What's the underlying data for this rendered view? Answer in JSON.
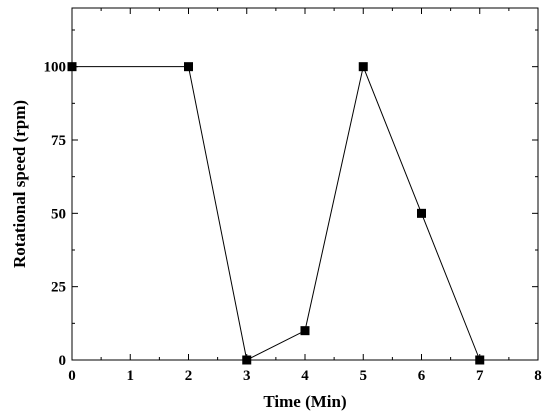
{
  "chart_data": {
    "type": "line",
    "title": "",
    "xlabel": "Time (Min)",
    "ylabel": "Rotational speed (rpm)",
    "xlim": [
      0,
      8
    ],
    "ylim": [
      0,
      120
    ],
    "x_ticks": [
      0,
      1,
      2,
      3,
      4,
      5,
      6,
      7,
      8
    ],
    "y_ticks": [
      0,
      25,
      50,
      75,
      100
    ],
    "grid": false,
    "legend": "none",
    "marker": "square",
    "line_color": "#000000",
    "series": [
      {
        "x": [
          0,
          2,
          3,
          4,
          5,
          6,
          7
        ],
        "values": [
          100,
          100,
          0,
          10,
          100,
          50,
          0
        ]
      }
    ]
  }
}
